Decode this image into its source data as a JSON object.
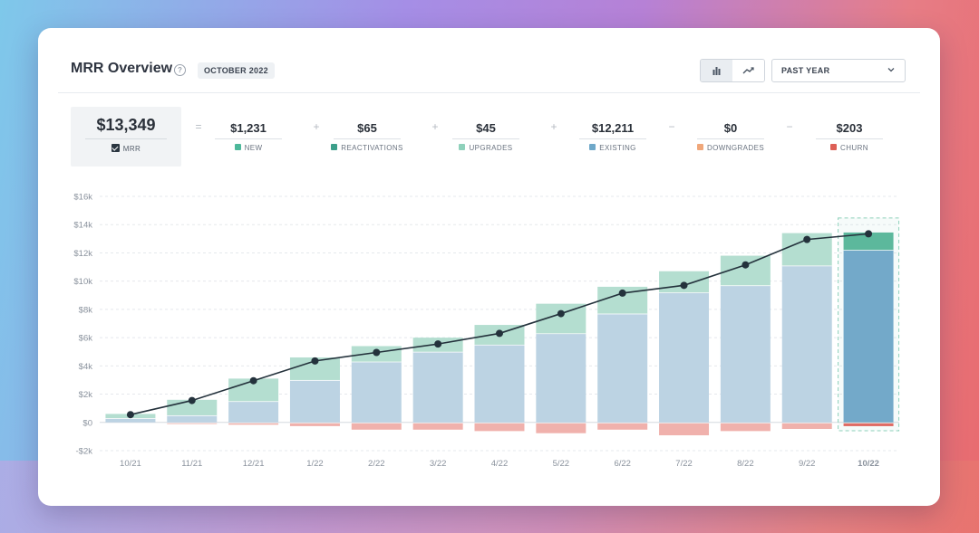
{
  "header": {
    "title": "MRR Overview",
    "period": "OCTOBER 2022",
    "range": "PAST YEAR",
    "icons": [
      "help-icon",
      "bar-chart-icon",
      "line-chart-icon",
      "chevron-down-icon"
    ]
  },
  "summary": {
    "mrr": {
      "value": "$13,349",
      "label": "MRR"
    },
    "operators": [
      "=",
      "+",
      "+",
      "+",
      "−",
      "−"
    ],
    "items": [
      {
        "value": "$1,231",
        "label": "NEW",
        "color": "#4db89a"
      },
      {
        "value": "$65",
        "label": "REACTIVATIONS",
        "color": "#3c9f8a"
      },
      {
        "value": "$45",
        "label": "UPGRADES",
        "color": "#8fd1bb"
      },
      {
        "value": "$12,211",
        "label": "EXISTING",
        "color": "#6fa8c9"
      },
      {
        "value": "$0",
        "label": "DOWNGRADES",
        "color": "#f0a77a"
      },
      {
        "value": "$203",
        "label": "CHURN",
        "color": "#dd5f56"
      }
    ]
  },
  "chart_data": {
    "type": "bar",
    "categories": [
      "10/21",
      "11/21",
      "12/21",
      "1/22",
      "2/22",
      "3/22",
      "4/22",
      "5/22",
      "6/22",
      "7/22",
      "8/22",
      "9/22",
      "10/22"
    ],
    "ylim": [
      -2000,
      16000
    ],
    "yticks": [
      -2000,
      0,
      2000,
      4000,
      6000,
      8000,
      10000,
      12000,
      14000,
      16000
    ],
    "ytick_labels": [
      "-$2k",
      "$0",
      "$2k",
      "$4k",
      "$6k",
      "$8k",
      "$10k",
      "$12k",
      "$14k",
      "$16k"
    ],
    "series": [
      {
        "name": "EXISTING",
        "values": [
          300,
          500,
          1500,
          3000,
          4300,
          5000,
          5500,
          6300,
          7700,
          9200,
          9700,
          11100,
          12211
        ]
      },
      {
        "name": "NEW",
        "values": [
          300,
          1100,
          1600,
          1600,
          1100,
          1000,
          1400,
          2100,
          1900,
          1500,
          2100,
          2300,
          1231
        ]
      },
      {
        "name": "CHURN",
        "values": [
          0,
          -50,
          -100,
          -200,
          -450,
          -450,
          -550,
          -700,
          -450,
          -850,
          -550,
          -400,
          -203
        ]
      }
    ],
    "line": {
      "name": "MRR",
      "values": [
        550,
        1550,
        2950,
        4350,
        4950,
        5550,
        6300,
        7700,
        9150,
        9700,
        11150,
        12950,
        13349
      ]
    },
    "highlight_index": 12,
    "grid": true,
    "legend": "none"
  }
}
